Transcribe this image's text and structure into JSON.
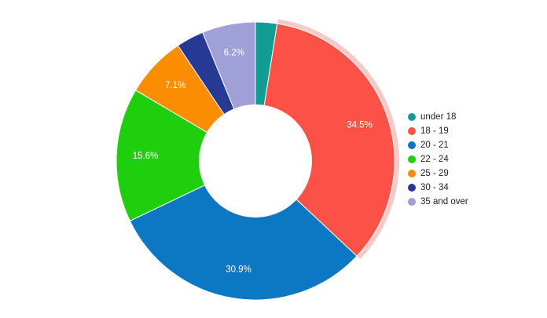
{
  "chart_data": {
    "type": "pie",
    "donut": true,
    "legend_position": "right",
    "categories": [
      "under 18",
      "18 - 19",
      "20 - 21",
      "22 - 24",
      "25 - 29",
      "30 - 34",
      "35 and over"
    ],
    "values": [
      2.5,
      34.5,
      30.9,
      15.6,
      7.1,
      3.2,
      6.2
    ],
    "slice_labels": [
      "",
      "34.5%",
      "30.9%",
      "15.6%",
      "7.1%",
      "",
      "6.2%"
    ],
    "colors": [
      "#119d94",
      "#fb5146",
      "#0c77c3",
      "#1fcf0d",
      "#fb8d02",
      "#263a93",
      "#a0a0d8"
    ],
    "highlighted": "18 - 19"
  }
}
